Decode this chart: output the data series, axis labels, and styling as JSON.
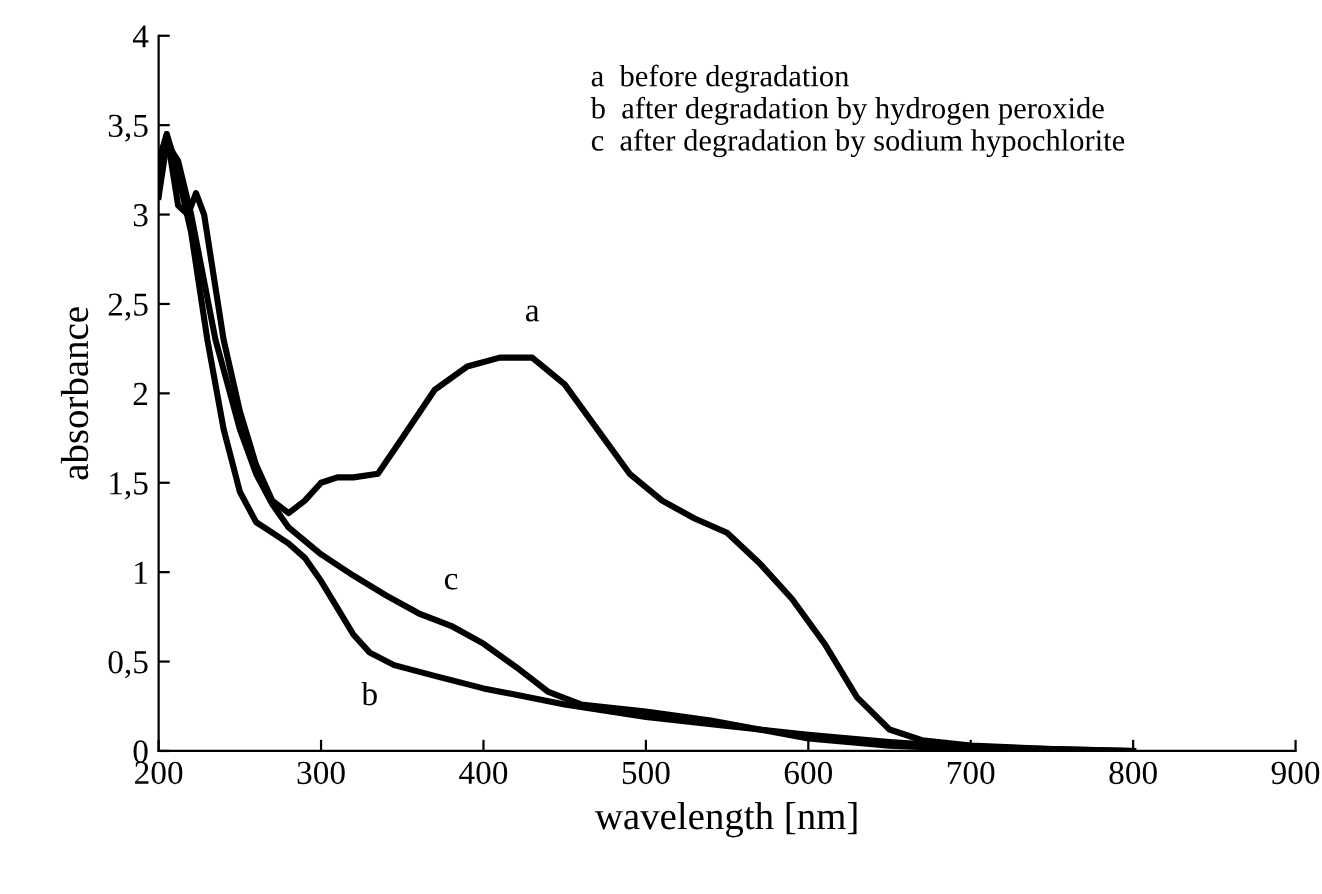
{
  "chart_data": {
    "type": "line",
    "xlabel": "wavelength [nm]",
    "ylabel": "absorbance",
    "xlim": [
      200,
      900
    ],
    "ylim": [
      0,
      4
    ],
    "xticks": [
      200,
      300,
      400,
      500,
      600,
      700,
      800,
      900
    ],
    "yticks": [
      0,
      {
        "value": 0.5,
        "label": "0,5"
      },
      1,
      {
        "value": 1.5,
        "label": "1,5"
      },
      2,
      {
        "value": 2.5,
        "label": "2,5"
      },
      3,
      {
        "value": 3.5,
        "label": "3,5"
      },
      4
    ],
    "grid": false,
    "marker": "none",
    "line_style": "solid",
    "series": [
      {
        "color": "#000000",
        "x": [
          200,
          205,
          212,
          218,
          223,
          228,
          240,
          250,
          260,
          270,
          280,
          290,
          300,
          310,
          320,
          335,
          350,
          370,
          390,
          410,
          430,
          450,
          470,
          490,
          510,
          530,
          550,
          570,
          590,
          610,
          630,
          650,
          670,
          700,
          750,
          800
        ],
        "values": [
          3.2,
          3.45,
          3.05,
          3.0,
          3.12,
          3.0,
          2.3,
          1.9,
          1.6,
          1.4,
          1.33,
          1.4,
          1.5,
          1.53,
          1.53,
          1.55,
          1.75,
          2.02,
          2.15,
          2.2,
          2.2,
          2.05,
          1.8,
          1.55,
          1.4,
          1.3,
          1.22,
          1.05,
          0.85,
          0.6,
          0.3,
          0.12,
          0.06,
          0.03,
          0.01,
          0
        ]
      },
      {
        "color": "#000000",
        "x": [
          200,
          205,
          210,
          220,
          230,
          240,
          250,
          260,
          270,
          280,
          290,
          300,
          310,
          320,
          330,
          345,
          370,
          400,
          450,
          500,
          550,
          600,
          650,
          700,
          750,
          800
        ],
        "values": [
          3.3,
          3.45,
          3.3,
          2.9,
          2.3,
          1.8,
          1.45,
          1.28,
          1.22,
          1.16,
          1.08,
          0.95,
          0.8,
          0.65,
          0.55,
          0.48,
          0.42,
          0.35,
          0.26,
          0.19,
          0.14,
          0.09,
          0.05,
          0.02,
          0.01,
          0
        ]
      },
      {
        "color": "#000000",
        "x": [
          200,
          205,
          212,
          220,
          235,
          250,
          260,
          270,
          280,
          300,
          320,
          340,
          360,
          380,
          400,
          420,
          440,
          460,
          500,
          540,
          570,
          600,
          650,
          700,
          750
        ],
        "values": [
          3.1,
          3.4,
          3.3,
          3.0,
          2.3,
          1.8,
          1.55,
          1.38,
          1.25,
          1.1,
          0.98,
          0.87,
          0.77,
          0.7,
          0.6,
          0.47,
          0.33,
          0.26,
          0.22,
          0.17,
          0.12,
          0.07,
          0.03,
          0.01,
          0
        ]
      }
    ],
    "annotations": [
      {
        "text": "a",
        "x": 430,
        "y": 2.2
      },
      {
        "text": "b",
        "x": 330,
        "y": 0.55
      },
      {
        "text": "c",
        "x": 380,
        "y": 0.7
      },
      "a  before degradation",
      "b  after degradation by hydrogen peroxide",
      "c  after degradation by sodium hypochlorite"
    ]
  }
}
